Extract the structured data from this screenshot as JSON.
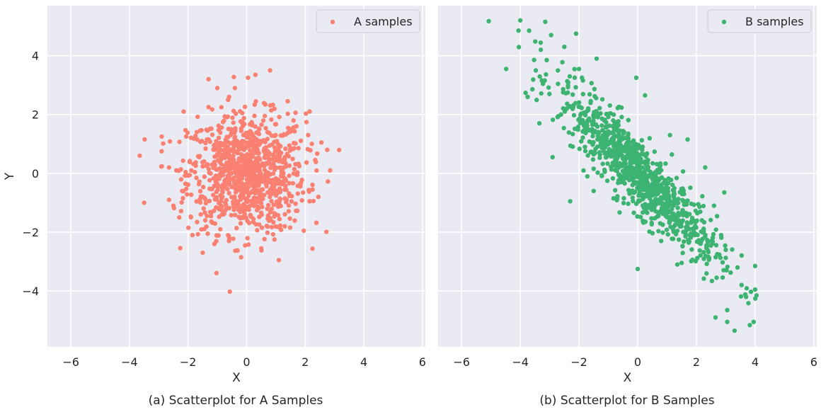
{
  "chart_data": [
    {
      "type": "scatter",
      "caption": "(a) Scatterplot for A Samples",
      "xlabel": "X",
      "ylabel": "Y",
      "xlim": [
        -6.8,
        6.1
      ],
      "ylim": [
        -5.9,
        5.7
      ],
      "xticks": [
        -6,
        -4,
        -2,
        0,
        2,
        4,
        6
      ],
      "yticks": [
        -4,
        -2,
        0,
        2,
        4
      ],
      "xtick_labels": [
        "−6",
        "−4",
        "−2",
        "0",
        "2",
        "4",
        "6"
      ],
      "ytick_labels": [
        "−4",
        "−2",
        "0",
        "2",
        "4"
      ],
      "grid": true,
      "legend_position": "top-right",
      "series": [
        {
          "name": "A samples",
          "color": "#fa8072",
          "distribution": "isotropic normal, mean (0,0), sd 1, n≈1000",
          "points": [
            [
              -3.65,
              0.6
            ],
            [
              -3.5,
              -1.0
            ],
            [
              -2.9,
              0.75
            ],
            [
              -2.9,
              1.25
            ],
            [
              -2.65,
              0.2
            ],
            [
              -2.5,
              -1.1
            ],
            [
              -2.3,
              -1.5
            ],
            [
              -2.15,
              2.1
            ],
            [
              -1.85,
              -2.1
            ],
            [
              -1.5,
              -2.7
            ],
            [
              -1.3,
              3.2
            ],
            [
              -1.0,
              2.9
            ],
            [
              -0.6,
              2.6
            ],
            [
              -0.4,
              2.9
            ],
            [
              -0.15,
              2.05
            ],
            [
              0.05,
              3.25
            ],
            [
              0.3,
              3.35
            ],
            [
              0.8,
              3.5
            ],
            [
              2.15,
              2.1
            ],
            [
              2.55,
              1.05
            ],
            [
              2.75,
              0.8
            ],
            [
              2.85,
              0.1
            ],
            [
              2.25,
              -0.55
            ],
            [
              2.45,
              -0.8
            ],
            [
              1.95,
              -1.95
            ],
            [
              1.1,
              -2.95
            ],
            [
              0.95,
              -2.25
            ],
            [
              0.5,
              -2.55
            ],
            [
              -0.05,
              -2.45
            ],
            [
              -0.6,
              -2.3
            ],
            [
              -1.1,
              -2.4
            ],
            [
              -1.3,
              2.25
            ],
            [
              1.4,
              2.45
            ],
            [
              1.7,
              1.6
            ],
            [
              2.1,
              1.3
            ],
            [
              -2.4,
              0.1
            ],
            [
              -2.2,
              -0.6
            ],
            [
              -1.7,
              1.4
            ],
            [
              1.3,
              -1.8
            ],
            [
              -0.9,
              -1.9
            ]
          ]
        }
      ]
    },
    {
      "type": "scatter",
      "caption": "(b) Scatterplot for B Samples",
      "xlabel": "X",
      "ylabel": "",
      "xlim": [
        -6.8,
        6.1
      ],
      "ylim": [
        -5.9,
        5.7
      ],
      "xticks": [
        -6,
        -4,
        -2,
        0,
        2,
        4,
        6
      ],
      "yticks": [
        -4,
        -2,
        0,
        2,
        4
      ],
      "xtick_labels": [
        "−6",
        "−4",
        "−2",
        "0",
        "2",
        "4",
        "6"
      ],
      "grid": true,
      "legend_position": "top-right",
      "series": [
        {
          "name": "B samples",
          "color": "#3cb371",
          "distribution": "strongly negatively correlated, y ≈ −x, n≈1000",
          "points": [
            [
              -4.0,
              5.2
            ],
            [
              -3.7,
              4.85
            ],
            [
              -3.15,
              5.15
            ],
            [
              -2.95,
              4.7
            ],
            [
              -2.1,
              4.75
            ],
            [
              -3.3,
              4.2
            ],
            [
              -3.75,
              2.6
            ],
            [
              -3.35,
              1.7
            ],
            [
              -2.9,
              0.55
            ],
            [
              -2.5,
              4.3
            ],
            [
              -1.4,
              3.9
            ],
            [
              -0.05,
              3.25
            ],
            [
              0.25,
              2.65
            ],
            [
              0.0,
              -3.25
            ],
            [
              0.8,
              -2.3
            ],
            [
              2.65,
              -4.9
            ],
            [
              3.05,
              -4.65
            ],
            [
              3.05,
              -5.05
            ],
            [
              3.3,
              -5.35
            ],
            [
              3.95,
              -5.05
            ],
            [
              4.0,
              -3.15
            ],
            [
              4.0,
              -3.95
            ],
            [
              4.05,
              -4.15
            ],
            [
              3.4,
              -3.2
            ],
            [
              2.95,
              -0.65
            ],
            [
              2.3,
              0.2
            ],
            [
              1.7,
              1.15
            ],
            [
              1.1,
              1.3
            ],
            [
              -3.1,
              3.85
            ],
            [
              -1.5,
              -0.6
            ],
            [
              -2.3,
              -0.95
            ],
            [
              3.0,
              -2.6
            ],
            [
              2.6,
              -1.1
            ],
            [
              -0.7,
              -0.85
            ],
            [
              1.35,
              -3.1
            ]
          ]
        }
      ]
    }
  ]
}
